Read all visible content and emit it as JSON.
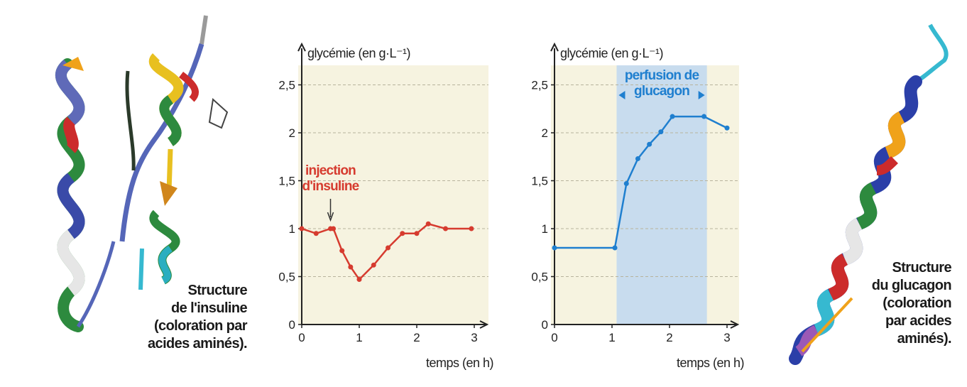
{
  "colors": {
    "plot_bg": "#f6f3e0",
    "perfusion_band": "#c8dcee",
    "insulin_series": "#d63b2f",
    "glucagon_series": "#1f7fcf",
    "axis": "#222222",
    "grid": "#b7b39c"
  },
  "captions": {
    "insulin": [
      "Structure",
      "de l'insuline",
      "(coloration par",
      "acides aminés)."
    ],
    "glucagon": [
      "Structure",
      "du glucagon",
      "(coloration",
      "par acides",
      "aminés)."
    ]
  },
  "chart_data": [
    {
      "type": "line",
      "ylabel": "glycémie (en g·L⁻¹)",
      "xlabel": "temps (en h)",
      "xlim": [
        0,
        3.1
      ],
      "ylim": [
        0,
        2.6
      ],
      "x_ticks": [
        0,
        1,
        2,
        3
      ],
      "y_ticks": [
        0,
        0.5,
        1,
        1.5,
        2,
        2.5
      ],
      "x_tick_labels": [
        "0",
        "1",
        "2",
        "3"
      ],
      "y_tick_labels": [
        "0",
        "0,5",
        "1",
        "1,5",
        "2",
        "2,5"
      ],
      "grid": "horizontal dashed",
      "series": [
        {
          "color_key": "insulin_series",
          "points": [
            [
              0,
              1.0
            ],
            [
              0.25,
              0.95
            ],
            [
              0.5,
              1.0
            ],
            [
              0.55,
              1.0
            ],
            [
              0.7,
              0.77
            ],
            [
              0.85,
              0.6
            ],
            [
              1.0,
              0.47
            ],
            [
              1.25,
              0.62
            ],
            [
              1.5,
              0.8
            ],
            [
              1.75,
              0.95
            ],
            [
              2.0,
              0.95
            ],
            [
              2.2,
              1.05
            ],
            [
              2.5,
              1.0
            ],
            [
              2.95,
              1.0
            ]
          ]
        }
      ],
      "annotation": {
        "text": [
          "injection",
          "d'insuline"
        ],
        "x": 0.5,
        "arrow": true,
        "color_key": "insulin_series"
      }
    },
    {
      "type": "line",
      "ylabel": "glycémie (en g·L⁻¹)",
      "xlabel": "temps (en h)",
      "xlim": [
        0,
        3.1
      ],
      "ylim": [
        0,
        2.6
      ],
      "x_ticks": [
        0,
        1,
        2,
        3
      ],
      "y_ticks": [
        0,
        0.5,
        1,
        1.5,
        2,
        2.5
      ],
      "x_tick_labels": [
        "0",
        "1",
        "2",
        "3"
      ],
      "y_tick_labels": [
        "0",
        "0,5",
        "1",
        "1,5",
        "2",
        "2,5"
      ],
      "grid": "horizontal dashed",
      "series": [
        {
          "color_key": "glucagon_series",
          "points": [
            [
              0,
              0.8
            ],
            [
              1.05,
              0.8
            ],
            [
              1.25,
              1.47
            ],
            [
              1.45,
              1.73
            ],
            [
              1.65,
              1.88
            ],
            [
              1.85,
              2.01
            ],
            [
              2.05,
              2.17
            ],
            [
              2.6,
              2.17
            ],
            [
              3.0,
              2.05
            ]
          ]
        }
      ],
      "band": {
        "x_from": 1.08,
        "x_to": 2.65,
        "color_key": "perfusion_band"
      },
      "annotation": {
        "text": [
          "perfusion de",
          "glucagon"
        ],
        "x": 1.865,
        "double_arrow": true,
        "color_key": "glucagon_series"
      }
    }
  ]
}
